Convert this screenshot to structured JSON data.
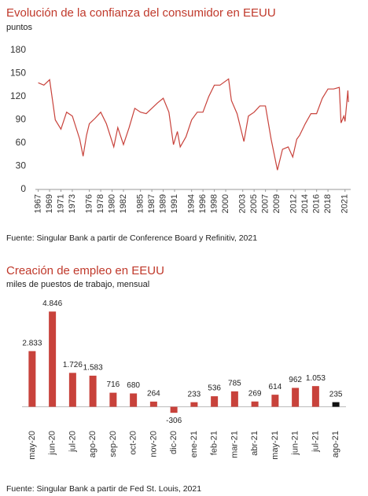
{
  "chart_data": [
    {
      "type": "line",
      "title": "Evolución de la confianza del consumidor en EEUU",
      "subtitle": "puntos",
      "source": "Fuente: Singular Bank a partir de Conference Board y Refinitiv, 2021",
      "x": [
        1967,
        1968,
        1969,
        1970,
        1971,
        1972,
        1973,
        1974.3,
        1974.9,
        1975.5,
        1976,
        1977,
        1978,
        1979,
        1980.3,
        1981,
        1982,
        1983,
        1984,
        1985,
        1986,
        1987,
        1988,
        1989,
        1990,
        1990.8,
        1991.5,
        1992,
        1993,
        1994,
        1995,
        1996,
        1997,
        1998,
        1999,
        2000.5,
        2001,
        2002,
        2003.2,
        2004,
        2005,
        2006,
        2007,
        2008,
        2009.1,
        2010,
        2011,
        2011.8,
        2012.5,
        2013,
        2014,
        2015,
        2016,
        2017,
        2018,
        2019,
        2020,
        2020.3,
        2020.8,
        2021,
        2021.5,
        2021.6
      ],
      "series": [
        {
          "name": "Confianza del consumidor",
          "color": "#c8423b",
          "values": [
            138,
            135,
            142,
            90,
            78,
            100,
            95,
            65,
            43,
            70,
            85,
            92,
            100,
            85,
            55,
            80,
            58,
            80,
            105,
            100,
            98,
            105,
            112,
            118,
            100,
            58,
            75,
            55,
            68,
            90,
            100,
            100,
            120,
            135,
            135,
            143,
            115,
            98,
            62,
            95,
            100,
            108,
            108,
            65,
            25,
            52,
            55,
            42,
            65,
            70,
            85,
            98,
            98,
            118,
            130,
            130,
            132,
            86,
            95,
            88,
            128,
            113
          ]
        }
      ],
      "xlim": [
        1966.5,
        2022
      ],
      "xticks": [
        1967,
        1969,
        1971,
        1973,
        1976,
        1978,
        1980,
        1982,
        1985,
        1987,
        1989,
        1991,
        1994,
        1996,
        1998,
        2000,
        2003,
        2005,
        2007,
        2009,
        2012,
        2014,
        2016,
        2018,
        2021
      ],
      "ylim": [
        0,
        180
      ],
      "yticks": [
        0,
        30,
        60,
        90,
        120,
        150,
        180
      ],
      "grid": false
    },
    {
      "type": "bar",
      "title": "Creación de empleo en EEUU",
      "subtitle": "miles de puestos de trabajo, mensual",
      "source": "Fuente: Singular Bank a partir de Fed St. Louis, 2021",
      "categories": [
        "may-20",
        "jun-20",
        "jul-20",
        "ago-20",
        "sep-20",
        "oct-20",
        "nov-20",
        "dic-20",
        "ene-21",
        "feb-21",
        "mar-21",
        "abr-21",
        "may-21",
        "jun-21",
        "jul-21",
        "ago-21"
      ],
      "values": [
        2833,
        4846,
        1726,
        1583,
        716,
        680,
        264,
        -306,
        233,
        536,
        785,
        269,
        614,
        962,
        1053,
        235
      ],
      "value_labels": [
        "2.833",
        "4.846",
        "1.726",
        "1.583",
        "716",
        "680",
        "264",
        "-306",
        "233",
        "536",
        "785",
        "269",
        "614",
        "962",
        "1.053",
        "235"
      ],
      "colors": [
        "#c8423b",
        "#c8423b",
        "#c8423b",
        "#c8423b",
        "#c8423b",
        "#c8423b",
        "#c8423b",
        "#c8423b",
        "#c8423b",
        "#c8423b",
        "#c8423b",
        "#c8423b",
        "#c8423b",
        "#c8423b",
        "#c8423b",
        "#111111"
      ],
      "ylim": [
        -700,
        5300
      ]
    }
  ]
}
